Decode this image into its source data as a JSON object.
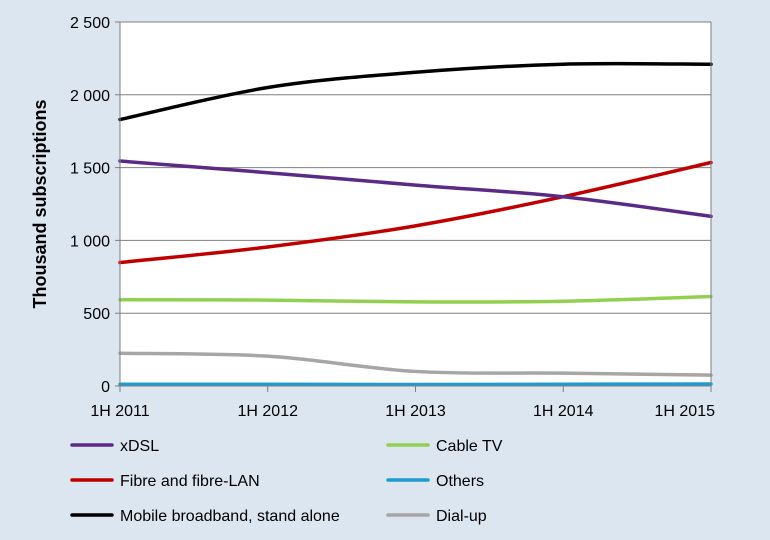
{
  "chart_data": {
    "type": "line",
    "title": "",
    "xlabel": "",
    "ylabel": "Thousand subscriptions",
    "x": [
      "1H 2011",
      "1H 2012",
      "1H 2013",
      "1H 2014",
      "1H 2015"
    ],
    "x_tick_labels": [
      "1H 2011",
      "1H 2012",
      "1H 2013",
      "1H 2014",
      "1H 2015"
    ],
    "ylim": [
      0,
      2500
    ],
    "y_ticks": [
      0,
      500,
      1000,
      1500,
      2000,
      2500
    ],
    "y_tick_labels": [
      "0",
      "500",
      "1 000",
      "1 500",
      "2 000",
      "2 500"
    ],
    "grid": "horizontal",
    "legend_position": "bottom",
    "series": [
      {
        "name": "xDSL",
        "color": "#5b2a86",
        "values": [
          1545,
          1465,
          1380,
          1300,
          1165
        ]
      },
      {
        "name": "Cable TV",
        "color": "#92d050",
        "values": [
          592,
          590,
          578,
          582,
          615
        ]
      },
      {
        "name": "Fibre and fibre-LAN",
        "color": "#c00000",
        "values": [
          848,
          955,
          1100,
          1300,
          1535
        ]
      },
      {
        "name": "Others",
        "color": "#1f9ccf",
        "values": [
          12,
          12,
          10,
          12,
          14
        ]
      },
      {
        "name": "Mobile broadband, stand alone",
        "color": "#000000",
        "values": [
          1830,
          2050,
          2155,
          2210,
          2210
        ]
      },
      {
        "name": "Dial-up",
        "color": "#a6a6a6",
        "values": [
          225,
          205,
          100,
          88,
          75
        ]
      }
    ]
  }
}
